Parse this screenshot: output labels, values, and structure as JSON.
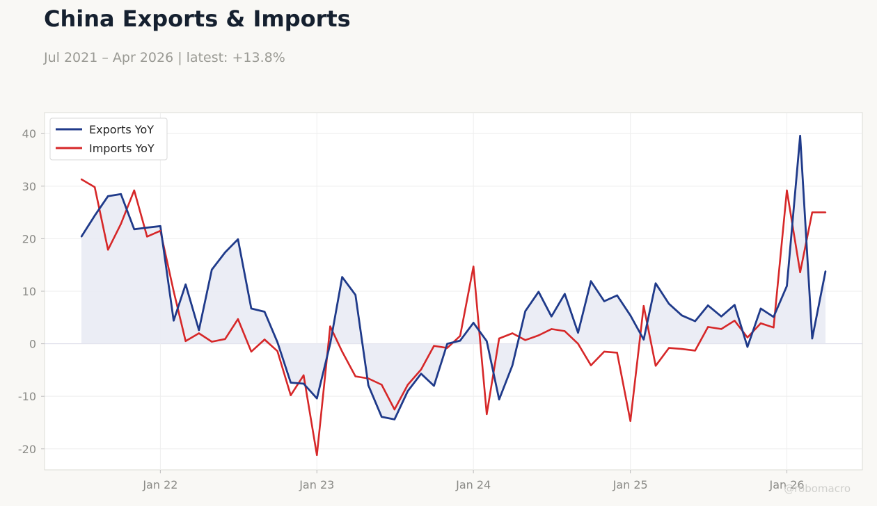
{
  "header": {
    "title": "China Exports & Imports",
    "subtitle": "Jul 2021 – Apr 2026 | latest: +13.8%"
  },
  "watermark": "@robomacro",
  "colors": {
    "exports": "#1f3a8a",
    "imports": "#d62728",
    "fill": "#e9ebf4",
    "grid": "#eeeeee",
    "zero_line": "#d6d6e4"
  },
  "chart_data": {
    "type": "line",
    "title": "China Exports & Imports",
    "subtitle": "Jul 2021 – Apr 2026 | latest: +13.8%",
    "xlabel": "",
    "ylabel": "",
    "ylim": [
      -24,
      44
    ],
    "yticks": [
      -20,
      -10,
      0,
      10,
      20,
      30,
      40
    ],
    "ytick_labels": [
      "-20",
      "-10",
      "0",
      "10",
      "20",
      "30",
      "40"
    ],
    "xticks": [
      {
        "label": "Jan 22",
        "date": "2022-01"
      },
      {
        "label": "Jan 23",
        "date": "2023-01"
      },
      {
        "label": "Jan 24",
        "date": "2024-01"
      },
      {
        "label": "Jan 25",
        "date": "2025-01"
      },
      {
        "label": "Jan 26",
        "date": "2026-01"
      }
    ],
    "grid": true,
    "legend_position": "top-left",
    "x": [
      "2021-07",
      "2021-08",
      "2021-09",
      "2021-10",
      "2021-11",
      "2021-12",
      "2022-01",
      "2022-02",
      "2022-03",
      "2022-04",
      "2022-05",
      "2022-06",
      "2022-07",
      "2022-08",
      "2022-09",
      "2022-10",
      "2022-11",
      "2022-12",
      "2023-01",
      "2023-02",
      "2023-03",
      "2023-04",
      "2023-05",
      "2023-06",
      "2023-07",
      "2023-08",
      "2023-09",
      "2023-10",
      "2023-11",
      "2023-12",
      "2024-01",
      "2024-02",
      "2024-03",
      "2024-04",
      "2024-05",
      "2024-06",
      "2024-07",
      "2024-08",
      "2024-09",
      "2024-10",
      "2024-11",
      "2024-12",
      "2025-01",
      "2025-02",
      "2025-03",
      "2025-04",
      "2025-05",
      "2025-06",
      "2025-07",
      "2025-08",
      "2025-09",
      "2025-10",
      "2025-11",
      "2025-12",
      "2026-01",
      "2026-02",
      "2026-03",
      "2026-04"
    ],
    "series": [
      {
        "name": "Exports YoY",
        "values": [
          20.4,
          24.4,
          28.1,
          28.5,
          21.8,
          22.1,
          22.4,
          4.4,
          11.3,
          2.6,
          14.1,
          17.4,
          19.9,
          6.7,
          6.1,
          0.3,
          -7.4,
          -7.6,
          -10.4,
          0.0,
          12.7,
          9.3,
          -7.9,
          -13.9,
          -14.4,
          -9.0,
          -5.7,
          -8.0,
          0.0,
          0.6,
          4.0,
          0.5,
          -10.6,
          -4.1,
          6.2,
          9.9,
          5.2,
          9.5,
          2.1,
          11.9,
          8.1,
          9.2,
          5.4,
          0.8,
          11.5,
          7.6,
          5.4,
          4.3,
          7.3,
          5.2,
          7.4,
          -0.6,
          6.7,
          5.1,
          11.0,
          39.6,
          1.0,
          13.8
        ]
      },
      {
        "name": "Imports YoY",
        "values": [
          31.3,
          29.8,
          17.9,
          22.8,
          29.2,
          20.4,
          21.5,
          10.0,
          0.5,
          2.0,
          0.4,
          0.9,
          4.7,
          -1.5,
          0.8,
          -1.4,
          -9.8,
          -6.0,
          -21.2,
          3.3,
          -1.5,
          -6.2,
          -6.6,
          -7.8,
          -12.5,
          -7.8,
          -4.9,
          -0.4,
          -0.8,
          1.5,
          14.7,
          -13.4,
          1.0,
          2.0,
          0.7,
          1.6,
          2.8,
          2.4,
          0.0,
          -4.1,
          -1.5,
          -1.7,
          -14.7,
          7.2,
          -4.2,
          -0.8,
          -1.0,
          -1.3,
          3.2,
          2.8,
          4.4,
          1.2,
          3.9,
          3.1,
          29.2,
          13.6,
          25.0,
          25.0
        ]
      }
    ]
  }
}
